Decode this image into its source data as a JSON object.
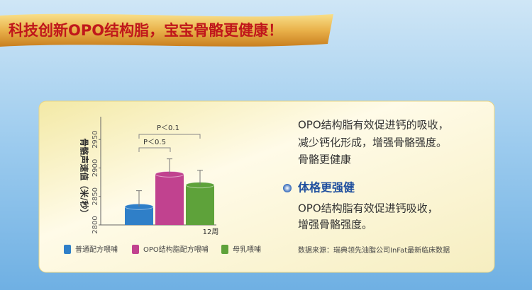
{
  "banner": {
    "title": "科技创新OPO结构脂，宝宝骨骼更健康！"
  },
  "chart_data": {
    "type": "bar",
    "y_label": "骨骼声速值（米/秒）",
    "categories": [
      "12周"
    ],
    "series": [
      {
        "name": "普通配方喂哺",
        "color": "#2f7fc8",
        "values": [
          2832
        ],
        "errors": [
          28
        ]
      },
      {
        "name": "OPO结构脂配方喂哺",
        "color": "#c1428f",
        "values": [
          2889
        ],
        "errors": [
          27
        ]
      },
      {
        "name": "母乳喂哺",
        "color": "#5ea23a",
        "values": [
          2870
        ],
        "errors": [
          26
        ]
      }
    ],
    "ylim": [
      2800,
      2990
    ],
    "yticks": [
      2800,
      2850,
      2900,
      2950
    ],
    "annotations": [
      {
        "text": "P＜0.1"
      },
      {
        "text": "P＜0.5"
      }
    ]
  },
  "description": {
    "paragraph1": [
      "OPO结构脂有效促进钙的吸收，",
      "减少钙化形成，增强骨骼强度。",
      "骨骼更健康"
    ],
    "heading": "体格更强健",
    "paragraph2": [
      "OPO结构脂有效促进钙吸收，",
      "增强骨骼强度。"
    ]
  },
  "source": "数据来源：瑞典领先油脂公司InFat最新临床数据"
}
